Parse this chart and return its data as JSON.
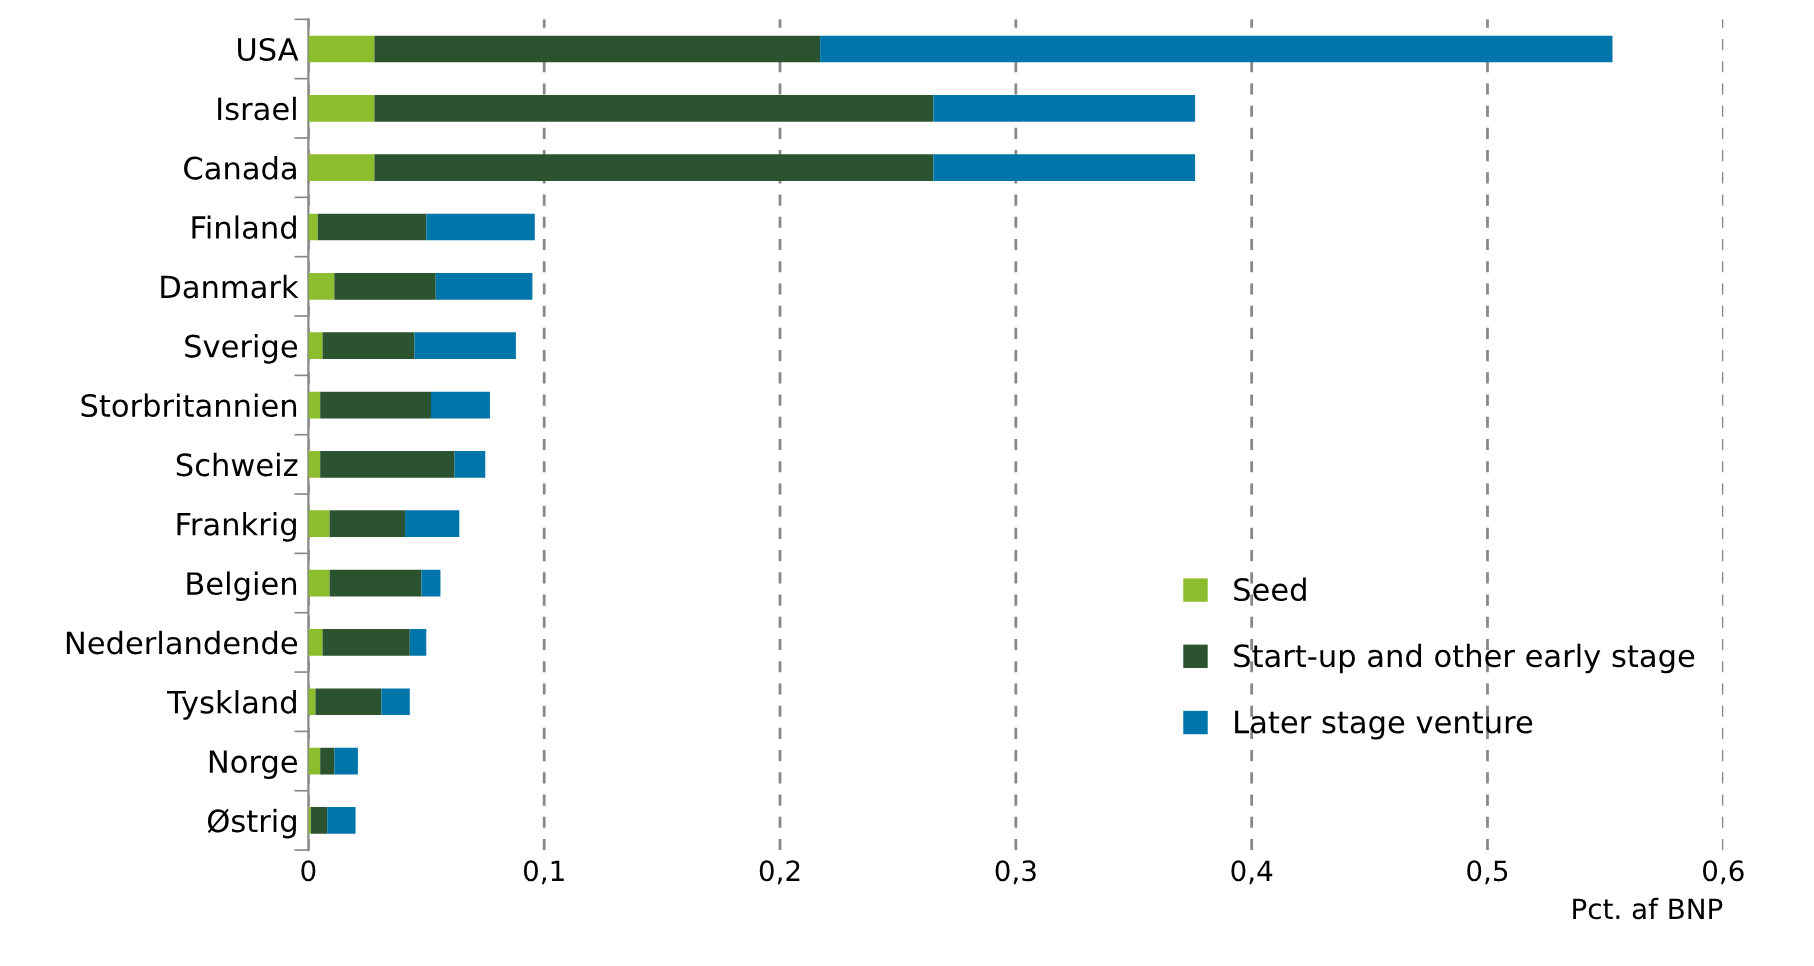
{
  "chart_data": {
    "type": "bar",
    "orientation": "horizontal",
    "stacked": true,
    "categories": [
      "USA",
      "Israel",
      "Canada",
      "Finland",
      "Danmark",
      "Sverige",
      "Storbritannien",
      "Schweiz",
      "Frankrig",
      "Belgien",
      "Nederlandende",
      "Tyskland",
      "Norge",
      "Østrig"
    ],
    "series": [
      {
        "name": "Seed",
        "color": "#8cbd2c",
        "values": [
          0.028,
          0.028,
          0.028,
          0.004,
          0.011,
          0.006,
          0.005,
          0.005,
          0.009,
          0.009,
          0.006,
          0.003,
          0.005,
          0.001
        ]
      },
      {
        "name": "Start-up and other early stage",
        "color": "#2b5330",
        "values": [
          0.189,
          0.237,
          0.237,
          0.046,
          0.043,
          0.039,
          0.047,
          0.057,
          0.032,
          0.039,
          0.037,
          0.028,
          0.006,
          0.007
        ]
      },
      {
        "name": "Later stage venture",
        "color": "#0075a9",
        "values": [
          0.336,
          0.111,
          0.111,
          0.046,
          0.041,
          0.043,
          0.025,
          0.013,
          0.023,
          0.008,
          0.007,
          0.012,
          0.01,
          0.012
        ]
      }
    ],
    "xlim": [
      0,
      0.6
    ],
    "xticks": [
      0,
      {
        "value": 0.1,
        "label": "0,1"
      },
      {
        "value": 0.2,
        "label": "0,2"
      },
      {
        "value": 0.3,
        "label": "0,3"
      },
      {
        "value": 0.4,
        "label": "0,4"
      },
      {
        "value": 0.5,
        "label": "0,5"
      },
      {
        "value": 0.6,
        "label": "0,6"
      }
    ],
    "xlabel": "Pct. af BNP",
    "grid": "x",
    "legend": "bottom right"
  }
}
